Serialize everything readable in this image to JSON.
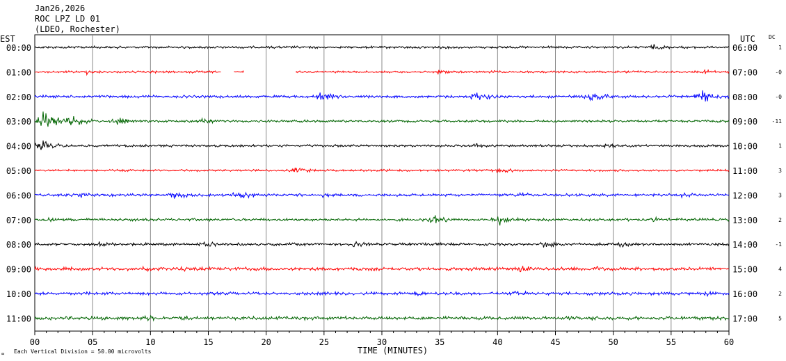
{
  "header": {
    "date": "Jan26,2026",
    "station": "ROC LPZ LD 01",
    "network": "(LDEO, Rochester)"
  },
  "labels": {
    "left_tz": "EST",
    "right_tz": "UTC",
    "dc": "DC",
    "x_title": "TIME (MINUTES)",
    "scale_note": "Each Vertical Division =   50.00 microvolts"
  },
  "colors": [
    "#000000",
    "#ff0000",
    "#0000ff",
    "#006400"
  ],
  "chart_data": {
    "type": "line",
    "title": "ROC LPZ LD 01",
    "xlabel": "TIME (MINUTES)",
    "ylabel": "",
    "xlim": [
      0,
      60
    ],
    "x_ticks": [
      "00",
      "05",
      "10",
      "15",
      "20",
      "25",
      "30",
      "35",
      "40",
      "45",
      "50",
      "55",
      "60"
    ],
    "grid": "vertical lines every 5 minutes",
    "rows": [
      {
        "est": "00:00",
        "utc": "06:00",
        "dc": "1",
        "color": "#000000",
        "base_amp": 0.35,
        "bursts": [
          [
            53.5,
            0.9
          ]
        ],
        "gaps": []
      },
      {
        "est": "01:00",
        "utc": "07:00",
        "dc": "-0",
        "color": "#ff0000",
        "base_amp": 0.3,
        "bursts": [
          [
            4.5,
            0.8
          ],
          [
            10,
            0.6
          ],
          [
            13.5,
            0.5
          ],
          [
            35,
            0.9
          ],
          [
            39.5,
            0.5
          ],
          [
            51,
            0.7
          ],
          [
            58,
            0.8
          ]
        ],
        "gaps": [
          [
            16.1,
            17.2
          ],
          [
            18.1,
            22.5
          ]
        ]
      },
      {
        "est": "02:00",
        "utc": "08:00",
        "dc": "-0",
        "color": "#0000ff",
        "base_amp": 0.4,
        "bursts": [
          [
            24.5,
            1.5
          ],
          [
            38,
            1.6
          ],
          [
            48,
            1.4
          ],
          [
            57.5,
            2.0
          ]
        ],
        "gaps": []
      },
      {
        "est": "03:00",
        "utc": "09:00",
        "dc": "-11",
        "color": "#006400",
        "base_amp": 0.35,
        "bursts": [
          [
            0.6,
            3.2
          ],
          [
            3,
            1.8
          ],
          [
            7,
            1.2
          ],
          [
            14.5,
            0.9
          ]
        ],
        "gaps": []
      },
      {
        "est": "04:00",
        "utc": "10:00",
        "dc": "1",
        "color": "#000000",
        "base_amp": 0.35,
        "bursts": [
          [
            0.5,
            1.6
          ],
          [
            38,
            0.8
          ],
          [
            49.5,
            0.8
          ]
        ],
        "gaps": []
      },
      {
        "est": "05:00",
        "utc": "11:00",
        "dc": "3",
        "color": "#ff0000",
        "base_amp": 0.3,
        "bursts": [
          [
            22.5,
            1.0
          ],
          [
            30,
            0.6
          ],
          [
            40,
            1.0
          ]
        ],
        "gaps": []
      },
      {
        "est": "06:00",
        "utc": "12:00",
        "dc": "3",
        "color": "#0000ff",
        "base_amp": 0.4,
        "bursts": [
          [
            4,
            0.9
          ],
          [
            12,
            1.2
          ],
          [
            17.5,
            1.6
          ],
          [
            25,
            0.8
          ],
          [
            42,
            0.9
          ],
          [
            56,
            0.8
          ]
        ],
        "gaps": []
      },
      {
        "est": "07:00",
        "utc": "13:00",
        "dc": "2",
        "color": "#006400",
        "base_amp": 0.4,
        "bursts": [
          [
            1,
            0.8
          ],
          [
            34.5,
            1.6
          ],
          [
            40,
            1.8
          ],
          [
            53.5,
            0.8
          ]
        ],
        "gaps": []
      },
      {
        "est": "08:00",
        "utc": "14:00",
        "dc": "-1",
        "color": "#000000",
        "base_amp": 0.4,
        "bursts": [
          [
            5.5,
            1.0
          ],
          [
            14.5,
            1.1
          ],
          [
            27.5,
            1.0
          ],
          [
            33.5,
            1.0
          ],
          [
            44,
            1.2
          ],
          [
            50.5,
            0.9
          ]
        ],
        "gaps": []
      },
      {
        "est": "09:00",
        "utc": "15:00",
        "dc": "4",
        "color": "#ff0000",
        "base_amp": 0.5,
        "bursts": [
          [
            9.5,
            0.9
          ],
          [
            13,
            1.2
          ],
          [
            42,
            1.1
          ],
          [
            48.5,
            0.9
          ]
        ],
        "gaps": []
      },
      {
        "est": "10:00",
        "utc": "16:00",
        "dc": "2",
        "color": "#0000ff",
        "base_amp": 0.45,
        "bursts": [
          [
            33,
            1.0
          ],
          [
            41.5,
            1.1
          ],
          [
            58,
            0.9
          ]
        ],
        "gaps": []
      },
      {
        "est": "11:00",
        "utc": "17:00",
        "dc": "5",
        "color": "#006400",
        "base_amp": 0.5,
        "bursts": [
          [
            9.5,
            1.0
          ],
          [
            12.5,
            1.0
          ],
          [
            48,
            1.0
          ]
        ],
        "gaps": []
      }
    ]
  }
}
